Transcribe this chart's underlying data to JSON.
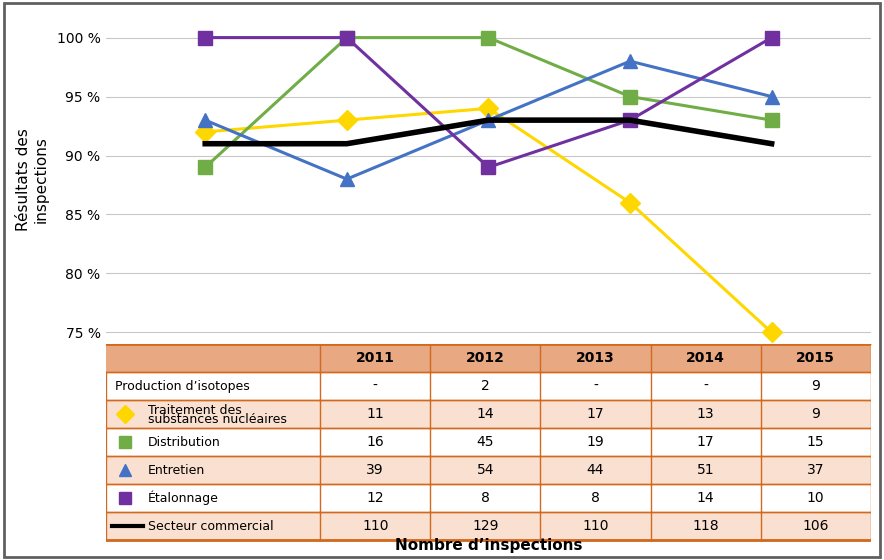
{
  "years": [
    2011,
    2012,
    2013,
    2014,
    2015
  ],
  "series": [
    {
      "name": "Traitement des substances nucléaires",
      "values": [
        92.0,
        93.0,
        94.0,
        86.0,
        75.0
      ],
      "color": "#FFD700",
      "marker": "D",
      "linewidth": 2.2
    },
    {
      "name": "Distribution",
      "values": [
        89.0,
        100.0,
        100.0,
        95.0,
        93.0
      ],
      "color": "#70AD47",
      "marker": "s",
      "linewidth": 2.2
    },
    {
      "name": "Entretien",
      "values": [
        93.0,
        88.0,
        93.0,
        98.0,
        95.0
      ],
      "color": "#4472C4",
      "marker": "^",
      "linewidth": 2.2
    },
    {
      "name": "Étalonnage",
      "values": [
        100.0,
        100.0,
        89.0,
        93.0,
        100.0
      ],
      "color": "#7030A0",
      "marker": "s",
      "linewidth": 2.2
    },
    {
      "name": "Secteur commercial",
      "values": [
        91.0,
        91.0,
        93.0,
        93.0,
        91.0
      ],
      "color": "#000000",
      "marker": null,
      "linewidth": 4.0
    }
  ],
  "ylabel": "Résultats des\ninspections",
  "ylim": [
    74,
    102
  ],
  "yticks": [
    75,
    80,
    85,
    90,
    95,
    100
  ],
  "ytick_labels": [
    "75 %",
    "80 %",
    "85 %",
    "90 %",
    "95 %",
    "100 %"
  ],
  "table_header_color": "#E8A882",
  "table_row_colors": [
    "#FFFFFF",
    "#FAE0D0",
    "#FFFFFF",
    "#FAE0D0",
    "#FFFFFF",
    "#FAE0D0"
  ],
  "table_border_color": "#D2691E",
  "table_xlabel": "Nombre d’inspections",
  "table_col_headers": [
    "2011",
    "2012",
    "2013",
    "2014",
    "2015"
  ],
  "table_rows": [
    {
      "label": "Production d’isotopes",
      "marker": null,
      "line": false,
      "color": null,
      "values": [
        "-",
        "2",
        "-",
        "-",
        "9"
      ]
    },
    {
      "label": "Traitement des\nsubstances nucléaires",
      "marker": "D",
      "line": false,
      "color": "#FFD700",
      "values": [
        "11",
        "14",
        "17",
        "13",
        "9"
      ]
    },
    {
      "label": "Distribution",
      "marker": "s",
      "line": false,
      "color": "#70AD47",
      "values": [
        "16",
        "45",
        "19",
        "17",
        "15"
      ]
    },
    {
      "label": "Entretien",
      "marker": "^",
      "line": false,
      "color": "#4472C4",
      "values": [
        "39",
        "54",
        "44",
        "51",
        "37"
      ]
    },
    {
      "label": "Étalonnage",
      "marker": "s",
      "line": false,
      "color": "#7030A0",
      "values": [
        "12",
        "8",
        "8",
        "14",
        "10"
      ]
    },
    {
      "label": "Secteur commercial",
      "marker": null,
      "line": true,
      "color": "#000000",
      "values": [
        "110",
        "129",
        "110",
        "118",
        "106"
      ]
    }
  ],
  "background_color": "#FFFFFF",
  "outer_border_color": "#606060"
}
